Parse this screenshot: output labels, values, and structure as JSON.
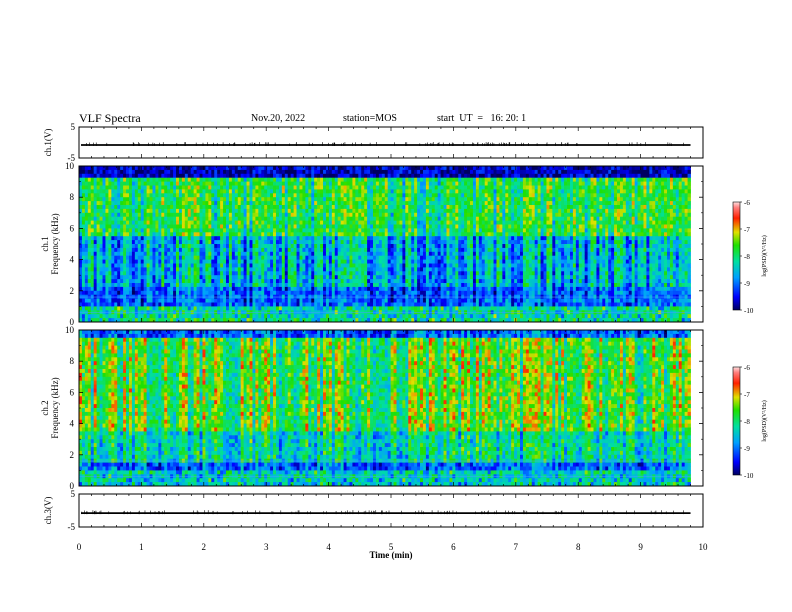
{
  "header": {
    "title": "VLF Spectra",
    "date": "Nov.20, 2022",
    "station": "station=MOS",
    "start": "start  UT  =   16: 20: 1"
  },
  "chart_data": [
    {
      "type": "line",
      "name": "ch1_amplitude",
      "ylabel": "ch.1(V)",
      "yticks": [
        "5",
        "-5"
      ],
      "ylim": [
        -5,
        5
      ],
      "xlim": [
        0,
        10
      ],
      "value_approx": -0.8
    },
    {
      "type": "heatmap",
      "name": "ch1_spectrogram",
      "ylabel": "ch.1\nFrequency (kHz)",
      "ylim": [
        0,
        10
      ],
      "yticks": [
        "0",
        "2",
        "4",
        "6",
        "8",
        "10"
      ],
      "xlim": [
        0,
        10
      ],
      "data_end_min": 9.8,
      "colorbar": {
        "label": "log(PSD)(V²/Hz)",
        "ticks": [
          "-6",
          "-7",
          "-8",
          "-9",
          "-10"
        ],
        "range": [
          -10,
          -6
        ]
      }
    },
    {
      "type": "heatmap",
      "name": "ch2_spectrogram",
      "ylabel": "ch.2\nFrequency (kHz)",
      "ylim": [
        0,
        10
      ],
      "yticks": [
        "0",
        "2",
        "4",
        "6",
        "8",
        "10"
      ],
      "xlim": [
        0,
        10
      ],
      "data_end_min": 9.8,
      "colorbar": {
        "label": "log(PSD)(V²/Hz)",
        "ticks": [
          "-6",
          "-7",
          "-8",
          "-9",
          "-10"
        ],
        "range": [
          -10,
          -6
        ]
      }
    },
    {
      "type": "line",
      "name": "ch3_amplitude",
      "ylabel": "ch.3(V)",
      "yticks": [
        "5",
        "-5"
      ],
      "ylim": [
        -5,
        5
      ],
      "xlim": [
        0,
        10
      ],
      "value_approx": -0.8
    }
  ],
  "xaxis": {
    "label": "Time  (min)",
    "ticks": [
      "0",
      "1",
      "2",
      "3",
      "4",
      "5",
      "6",
      "7",
      "8",
      "9",
      "10"
    ]
  }
}
